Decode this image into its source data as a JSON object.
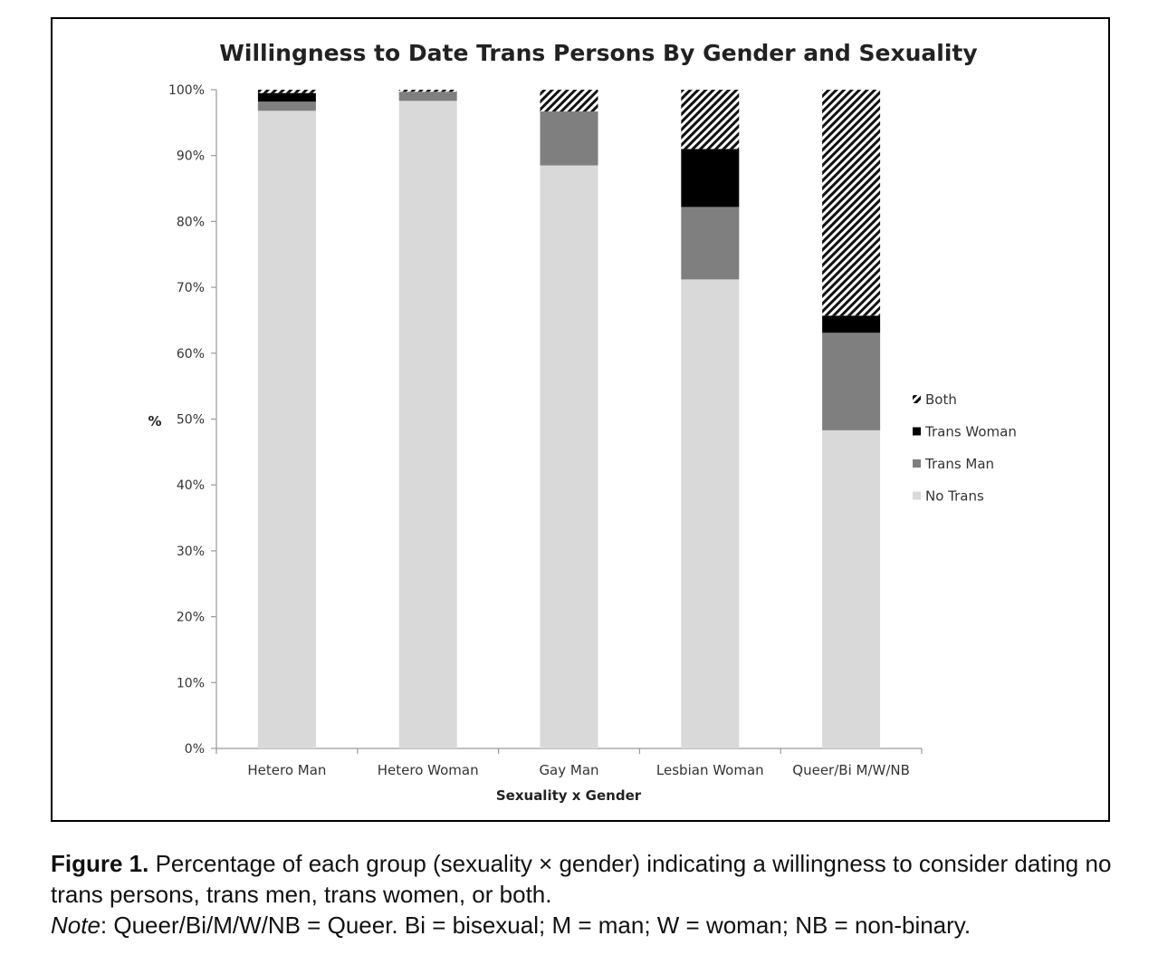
{
  "chart_data": {
    "type": "bar",
    "stacked": true,
    "title": "Willingness to Date Trans Persons By Gender and Sexuality",
    "xlabel": "Sexuality x Gender",
    "ylabel": "%",
    "ylim": [
      0,
      100
    ],
    "yticks": [
      "0%",
      "10%",
      "20%",
      "30%",
      "40%",
      "50%",
      "60%",
      "70%",
      "80%",
      "90%",
      "100%"
    ],
    "categories": [
      "Hetero Man",
      "Hetero Woman",
      "Gay Man",
      "Lesbian Woman",
      "Queer/Bi M/W/NB"
    ],
    "series": [
      {
        "name": "No Trans",
        "values": [
          96.8,
          98.3,
          88.5,
          71.2,
          48.3
        ],
        "color": "#d9d9d9",
        "pattern": "solid"
      },
      {
        "name": "Trans Man",
        "values": [
          1.4,
          1.4,
          8.2,
          11.0,
          14.8
        ],
        "color": "#7f7f7f",
        "pattern": "solid"
      },
      {
        "name": "Trans Woman",
        "values": [
          1.3,
          0.0,
          0.0,
          8.8,
          2.6
        ],
        "color": "#000000",
        "pattern": "solid"
      },
      {
        "name": "Both",
        "values": [
          0.5,
          0.3,
          3.3,
          9.0,
          34.3
        ],
        "color": "#000000",
        "pattern": "hatch"
      }
    ],
    "legend_position": "right",
    "legend_order": [
      "Both",
      "Trans Woman",
      "Trans Man",
      "No Trans"
    ],
    "grid": false
  },
  "caption": {
    "figure_label": "Figure 1.",
    "text": " Percentage of each group (sexuality × gender) indicating a willingness to consider dating no trans persons, trans men, trans women, or both.",
    "note_label": "Note",
    "note_text": ": Queer/Bi/M/W/NB = Queer. Bi = bisexual; M = man; W = woman; NB = non-binary."
  }
}
